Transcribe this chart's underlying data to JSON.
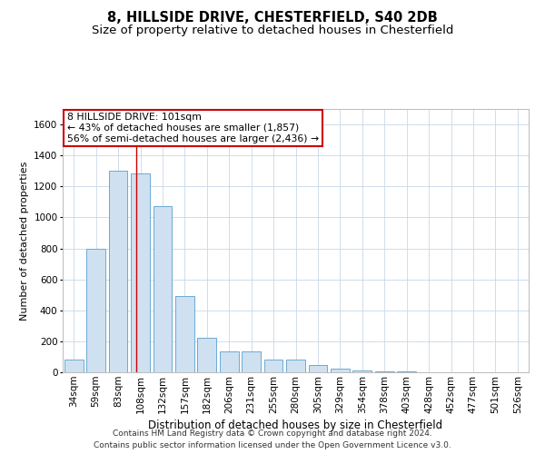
{
  "title": "8, HILLSIDE DRIVE, CHESTERFIELD, S40 2DB",
  "subtitle": "Size of property relative to detached houses in Chesterfield",
  "xlabel": "Distribution of detached houses by size in Chesterfield",
  "ylabel": "Number of detached properties",
  "bar_color": "#cfe0f0",
  "bar_edge_color": "#6aaad4",
  "categories": [
    "34sqm",
    "59sqm",
    "83sqm",
    "108sqm",
    "132sqm",
    "157sqm",
    "182sqm",
    "206sqm",
    "231sqm",
    "255sqm",
    "280sqm",
    "305sqm",
    "329sqm",
    "354sqm",
    "378sqm",
    "403sqm",
    "428sqm",
    "452sqm",
    "477sqm",
    "501sqm",
    "526sqm"
  ],
  "values": [
    80,
    800,
    1300,
    1285,
    1075,
    490,
    220,
    135,
    135,
    80,
    80,
    45,
    25,
    12,
    6,
    4,
    2,
    1,
    1,
    0.5,
    0
  ],
  "ylim": [
    0,
    1700
  ],
  "yticks": [
    0,
    200,
    400,
    600,
    800,
    1000,
    1200,
    1400,
    1600
  ],
  "vline_x": 2.82,
  "vline_color": "#cc0000",
  "annotation_line1": "8 HILLSIDE DRIVE: 101sqm",
  "annotation_line2": "← 43% of detached houses are smaller (1,857)",
  "annotation_line3": "56% of semi-detached houses are larger (2,436) →",
  "annotation_box_color": "#ffffff",
  "annotation_box_edge": "#cc0000",
  "footer_line1": "Contains HM Land Registry data © Crown copyright and database right 2024.",
  "footer_line2": "Contains public sector information licensed under the Open Government Licence v3.0.",
  "bg_color": "#ffffff",
  "grid_color": "#c8d8e8",
  "title_fontsize": 10.5,
  "subtitle_fontsize": 9.5,
  "tick_fontsize": 7.5,
  "ylabel_fontsize": 8,
  "xlabel_fontsize": 8.5,
  "annotation_fontsize": 7.8,
  "footer_fontsize": 6.5
}
